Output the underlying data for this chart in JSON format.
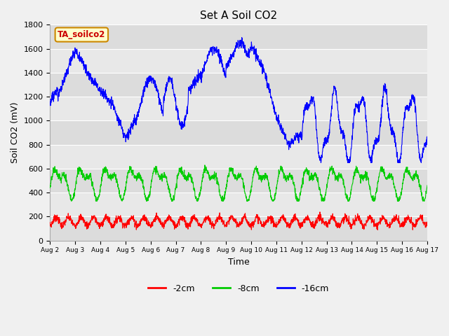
{
  "title": "Set A Soil CO2",
  "ylabel": "Soil CO2 (mV)",
  "xlabel": "Time",
  "ylim": [
    0,
    1800
  ],
  "label_box_text": "TA_soilco2",
  "label_box_bg": "#ffffcc",
  "label_box_edge": "#cc8800",
  "label_box_text_color": "#cc0000",
  "legend_entries": [
    "-2cm",
    "-8cm",
    "-16cm"
  ],
  "line_colors": [
    "#ff0000",
    "#00cc00",
    "#0000ff"
  ],
  "x_tick_labels": [
    "Aug 2",
    "Aug 3",
    "Aug 4",
    "Aug 5",
    "Aug 6",
    "Aug 7",
    "Aug 8",
    "Aug 9",
    "Aug 10",
    "Aug 11",
    "Aug 12",
    "Aug 13",
    "Aug 14",
    "Aug 15",
    "Aug 16",
    "Aug 17"
  ],
  "stripe_colors": [
    "#dcdcdc",
    "#e8e8e8"
  ],
  "stripe_positions": [
    0,
    200,
    400,
    600,
    800,
    1000,
    1200,
    1400,
    1600,
    1800
  ],
  "n_points": 2000
}
